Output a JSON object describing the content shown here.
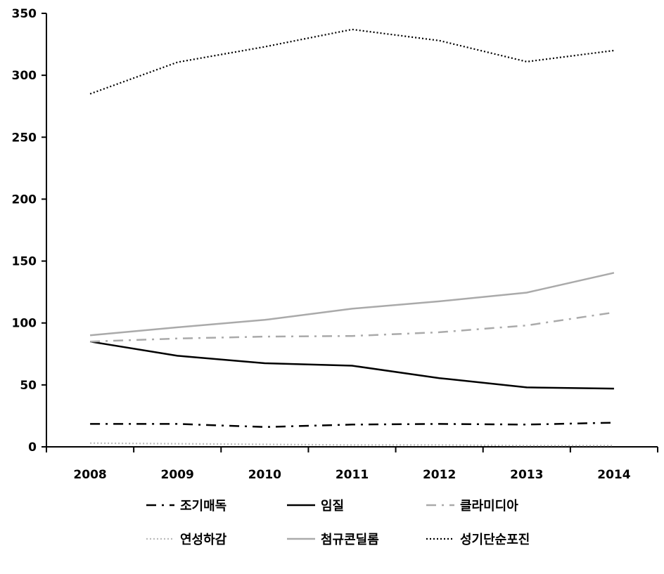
{
  "chart_data": {
    "type": "line",
    "title": "",
    "xlabel": "",
    "ylabel": "",
    "x": [
      "2008",
      "2009",
      "2010",
      "2011",
      "2012",
      "2013",
      "2014"
    ],
    "ylim": [
      0,
      350
    ],
    "yticks": [
      0,
      50,
      100,
      150,
      200,
      250,
      300,
      350
    ],
    "grid": false,
    "legend_position": "bottom",
    "series": [
      {
        "name": "조기매독",
        "values": [
          18.5,
          18.5,
          16.0,
          18.0,
          18.5,
          18.0,
          19.5
        ],
        "color": "#000000",
        "dash": "dashdot"
      },
      {
        "name": "임질",
        "values": [
          85,
          73.5,
          67.5,
          65.5,
          55.5,
          48.0,
          47.0
        ],
        "color": "#000000",
        "dash": "solid"
      },
      {
        "name": "클라미디아",
        "values": [
          85,
          87.5,
          89.0,
          89.5,
          92.5,
          98.0,
          108.5
        ],
        "color": "#aaaaaa",
        "dash": "dashdot"
      },
      {
        "name": "연성하감",
        "values": [
          3.0,
          2.5,
          2.0,
          1.5,
          1.5,
          1.0,
          1.0
        ],
        "color": "#bbbbbb",
        "dash": "dotted"
      },
      {
        "name": "첨규콘딜롬",
        "values": [
          90,
          96.5,
          102.5,
          111.5,
          117.5,
          124.5,
          140.5
        ],
        "color": "#aaaaaa",
        "dash": "solid"
      },
      {
        "name": "성기단순포진",
        "values": [
          285,
          310.5,
          323.0,
          337.0,
          328.0,
          311.0,
          320.0
        ],
        "color": "#000000",
        "dash": "dotted"
      }
    ]
  }
}
